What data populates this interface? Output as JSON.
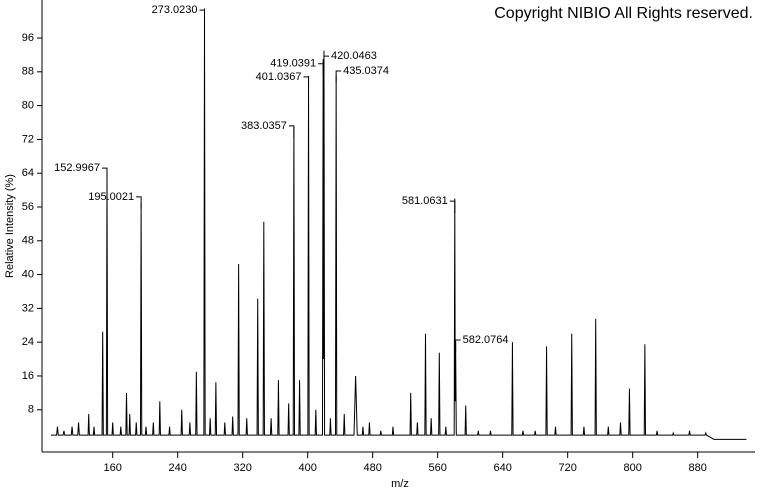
{
  "chart_data": {
    "type": "line",
    "xlabel": "m/z",
    "ylabel": "Relative Intensity (%)",
    "copyright": "Copyright NIBIO All Rights reserved.",
    "xlim": [
      73,
      946
    ],
    "ylim": [
      -2,
      105
    ],
    "xticks": [
      160,
      240,
      320,
      400,
      480,
      560,
      640,
      720,
      800,
      880
    ],
    "yticks": [
      8,
      16,
      24,
      32,
      40,
      48,
      56,
      64,
      72,
      80,
      88,
      96
    ],
    "series": [
      {
        "color": "#000000",
        "x": [
          84,
          91,
          92,
          93,
          99,
          100,
          101,
          109,
          110,
          111,
          117,
          118,
          119,
          129.7,
          130.5,
          131.3,
          136.2,
          137,
          137.8,
          146.9,
          147.7,
          148.5,
          152.2,
          153,
          153.8,
          159.2,
          160,
          160.8,
          169.2,
          170,
          170.8,
          176.2,
          177,
          177.8,
          180.2,
          181,
          181.8,
          188.2,
          189,
          189.8,
          194.2,
          195,
          195.8,
          200.2,
          201,
          201.8,
          209.2,
          210,
          210.8,
          217.2,
          218,
          218.8,
          229.2,
          230,
          230.8,
          244.2,
          245,
          245.8,
          254.2,
          255,
          255.8,
          262.2,
          263,
          263.8,
          272.2,
          273.02,
          273.8,
          279.2,
          280,
          280.8,
          286.2,
          287,
          287.8,
          297.2,
          298,
          298.8,
          306.9,
          307.7,
          308.5,
          314.2,
          315,
          315.8,
          324.2,
          325,
          325.8,
          337.7,
          338.5,
          339.3,
          345.2,
          346,
          346.8,
          354.2,
          355,
          355.8,
          363.2,
          364,
          364.8,
          375.8,
          376.6,
          377.4,
          382.2,
          383.04,
          383.8,
          389.2,
          390,
          390.8,
          400.2,
          401.04,
          401.8,
          409.2,
          410,
          410.8,
          418.2,
          419.04,
          419.5,
          420.05,
          420.8,
          427.2,
          428,
          428.8,
          434.2,
          435.04,
          435.8,
          444.2,
          445,
          445.8,
          457,
          459,
          461,
          467.2,
          468,
          468.8,
          475.2,
          476,
          476.8,
          489.2,
          490,
          490.8,
          504.2,
          505,
          505.8,
          526,
          526.8,
          527.6,
          534.2,
          535,
          535.8,
          544.2,
          545,
          545.8,
          551.2,
          552,
          552.8,
          561.2,
          562,
          562.8,
          569.2,
          570,
          570.8,
          580.3,
          581.06,
          581.6,
          582.08,
          582.9,
          593.7,
          594.5,
          595.3,
          609.2,
          610,
          610.8,
          624.2,
          625,
          625.8,
          651.2,
          652,
          652.8,
          664.2,
          665,
          665.8,
          679.2,
          680,
          680.8,
          693.2,
          694,
          694.8,
          704.2,
          705,
          705.8,
          724.2,
          725,
          725.8,
          739.2,
          740,
          740.8,
          753.7,
          754.5,
          755.3,
          769.2,
          770,
          770.8,
          784.2,
          785,
          785.8,
          795.2,
          796,
          796.8,
          814.2,
          815,
          815.8,
          829.2,
          830,
          830.8,
          849.2,
          850,
          850.8,
          869.2,
          870,
          870.8,
          889.2,
          890,
          890.8,
          900,
          940
        ],
        "values": [
          2,
          2,
          4,
          2,
          2,
          3,
          2,
          2,
          4,
          2,
          2,
          5,
          2,
          2,
          7,
          2,
          2,
          4,
          2,
          2,
          26.5,
          2,
          2,
          65,
          2,
          2,
          5,
          2,
          2,
          4,
          2,
          2,
          12,
          2,
          2,
          7,
          2,
          2,
          5,
          2,
          2,
          57,
          2,
          2,
          4,
          2,
          2,
          5,
          2,
          2,
          10,
          2,
          2,
          4,
          2,
          2,
          8,
          2,
          2,
          5,
          2,
          2,
          17,
          2,
          2,
          103,
          2,
          2,
          6,
          2,
          2,
          14.5,
          2,
          2,
          5,
          2,
          2,
          6.4,
          2,
          2,
          42.5,
          2,
          2,
          6,
          2,
          2,
          34.3,
          2,
          2,
          52.5,
          2,
          2,
          6,
          2,
          2,
          15,
          2,
          2,
          9.5,
          2,
          2,
          75,
          2,
          2,
          15,
          2,
          2,
          87,
          2,
          2,
          8,
          2,
          2,
          91,
          20,
          93,
          2,
          2,
          6,
          2,
          2,
          87,
          2,
          2,
          7,
          2,
          2,
          16,
          2,
          2,
          4,
          2,
          2,
          5,
          2,
          2,
          3,
          2,
          2,
          4,
          2,
          2,
          12,
          2,
          2,
          5,
          2,
          2,
          26,
          2,
          2,
          6,
          2,
          2,
          21.5,
          2,
          2,
          4,
          2,
          2,
          58,
          10,
          24,
          2,
          2,
          9,
          2,
          2,
          3,
          2,
          2,
          3,
          2,
          2,
          24,
          2,
          2,
          3,
          2,
          2,
          3,
          2,
          2,
          23,
          2,
          2,
          4,
          2,
          2,
          26,
          2,
          2,
          4,
          2,
          2,
          29.5,
          2,
          2,
          4,
          2,
          2,
          5,
          2,
          2,
          13,
          2,
          2,
          23.5,
          2,
          2,
          3,
          2,
          2,
          2.5,
          2,
          2,
          3,
          2,
          2,
          2.5,
          2,
          1,
          1
        ]
      }
    ],
    "annotations": [
      {
        "text": "152.9967",
        "x": 152.9967,
        "y": 65.2,
        "anchor": "left"
      },
      {
        "text": "195.0021",
        "x": 195.0021,
        "y": 58.4,
        "anchor": "left"
      },
      {
        "text": "273.0230",
        "x": 273.023,
        "y": 102.6,
        "anchor": "left"
      },
      {
        "text": "383.0357",
        "x": 383.0357,
        "y": 75.2,
        "anchor": "left"
      },
      {
        "text": "401.0367",
        "x": 401.0367,
        "y": 86.8,
        "anchor": "left"
      },
      {
        "text": "419.0391",
        "x": 419.0391,
        "y": 89.9,
        "anchor": "left"
      },
      {
        "text": "420.0463",
        "x": 420.0463,
        "y": 91.7,
        "anchor": "right"
      },
      {
        "text": "435.0374",
        "x": 435.0374,
        "y": 88.2,
        "anchor": "right"
      },
      {
        "text": "581.0631",
        "x": 581.0631,
        "y": 57.4,
        "anchor": "left"
      },
      {
        "text": "582.0764",
        "x": 582.0764,
        "y": 24.5,
        "anchor": "right"
      }
    ]
  }
}
